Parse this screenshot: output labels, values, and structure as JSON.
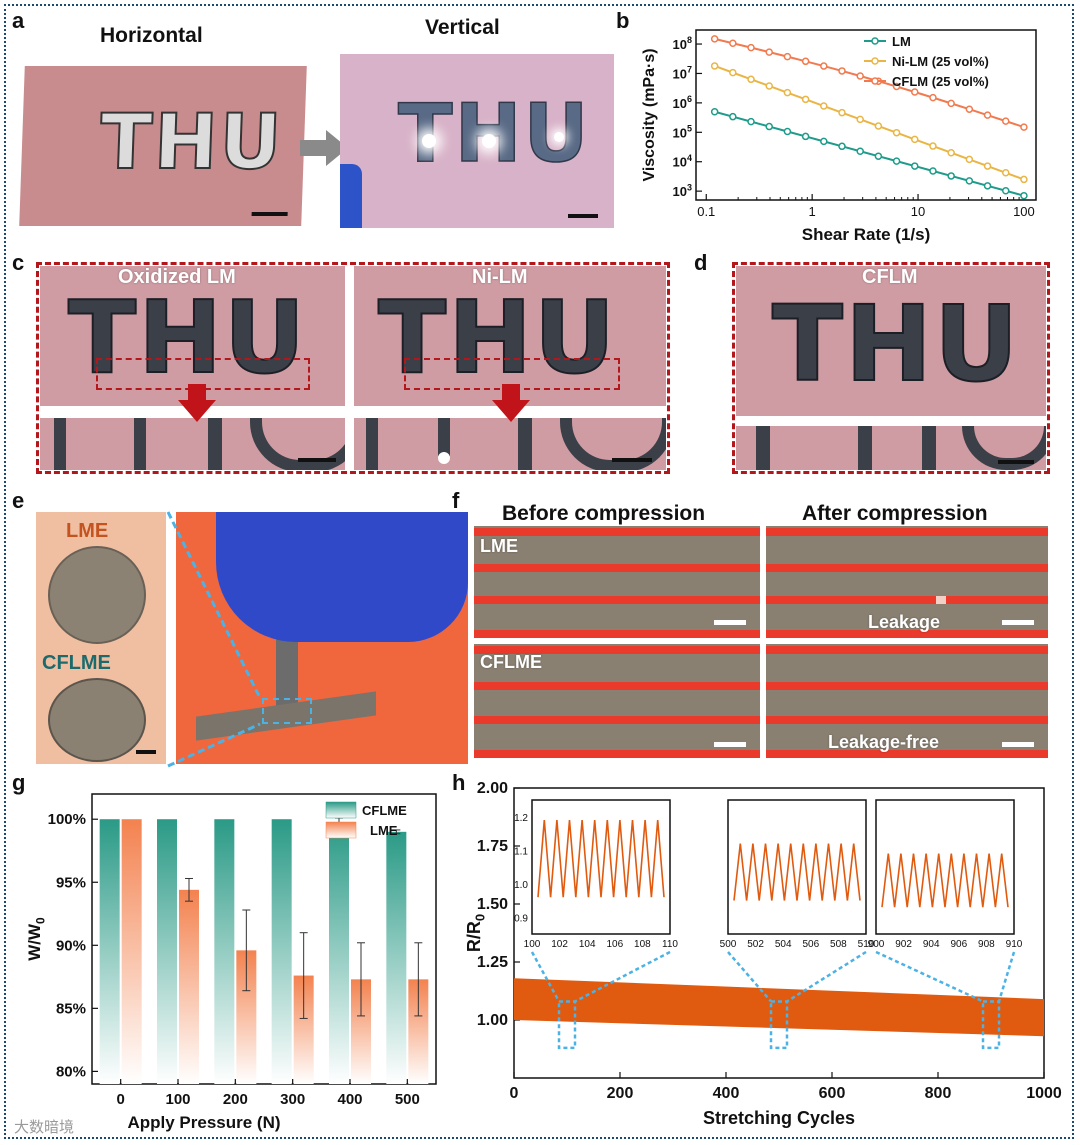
{
  "watermark": "大数暗境",
  "panels": {
    "a": {
      "label": "a",
      "title_left": "Horizontal",
      "title_right": "Vertical",
      "sample_text": "THU"
    },
    "b": {
      "label": "b"
    },
    "c": {
      "label": "c",
      "left_title": "Oxidized LM",
      "right_title": "Ni-LM",
      "sample_text": "THU"
    },
    "d": {
      "label": "d",
      "title": "CFLM",
      "sample_text": "THU"
    },
    "e": {
      "label": "e",
      "top_label": "LME",
      "bottom_label": "CFLME"
    },
    "f": {
      "label": "f",
      "col_before": "Before compression",
      "col_after": "After compression",
      "row1": "LME",
      "row2": "CFLME",
      "leak": "Leakage",
      "leakfree": "Leakage-free"
    },
    "g": {
      "label": "g"
    },
    "h": {
      "label": "h"
    }
  },
  "colors": {
    "lm": "#1e9b8a",
    "nilm": "#e9b646",
    "cflm": "#f17a4f",
    "cflme": "#2a9a86",
    "lme": "#f3824f",
    "series": "#e05a0f"
  },
  "chart_data": [
    {
      "id": "b",
      "type": "line",
      "title": "",
      "xlabel": "Shear Rate (1/s)",
      "ylabel": "Viscosity (mPa·s)",
      "xscale": "log",
      "yscale": "log",
      "xlim": [
        0.08,
        130
      ],
      "ylim": [
        500,
        300000000
      ],
      "xticks": [
        "0.1",
        "1",
        "10",
        "100"
      ],
      "yticks": [
        "10^3",
        "10^4",
        "10^5",
        "10^6",
        "10^7",
        "10^8"
      ],
      "legend_position": "top-right",
      "series": [
        {
          "name": "LM",
          "color": "#1e9b8a",
          "x_start": 0.12,
          "x_end": 100,
          "y_start": 500000,
          "y_end": 700
        },
        {
          "name": "Ni-LM (25 vol%)",
          "color": "#e9b646",
          "x_start": 0.12,
          "x_end": 100,
          "y_start": 18000000,
          "y_end": 2500
        },
        {
          "name": "CFLM (25 vol%)",
          "color": "#f17a4f",
          "x_start": 0.12,
          "x_end": 100,
          "y_start": 150000000,
          "y_end": 150000
        }
      ]
    },
    {
      "id": "g",
      "type": "bar",
      "xlabel": "Apply Pressure (N)",
      "ylabel": "W/W0",
      "categories": [
        "0",
        "100",
        "200",
        "300",
        "400",
        "500"
      ],
      "yticks": [
        "80%",
        "85%",
        "90%",
        "95%",
        "100%"
      ],
      "ylim": [
        79,
        102
      ],
      "legend_position": "top-right",
      "series": [
        {
          "name": "CFLME",
          "values": [
            100,
            100,
            100,
            100,
            99.7,
            99.0
          ],
          "errors": [
            0,
            0,
            0,
            0,
            0.4,
            0.15
          ]
        },
        {
          "name": "LME",
          "values": [
            100,
            94.4,
            89.6,
            87.6,
            87.3,
            87.3
          ],
          "errors": [
            0,
            0.9,
            3.2,
            3.4,
            2.9,
            2.9
          ]
        }
      ]
    },
    {
      "id": "h",
      "type": "line",
      "xlabel": "Stretching Cycles",
      "ylabel": "R/R0",
      "xlim": [
        0,
        1000
      ],
      "ylim": [
        0.75,
        2.0
      ],
      "xticks": [
        "0",
        "200",
        "400",
        "600",
        "800",
        "1000"
      ],
      "yticks": [
        "1.00",
        "1.25",
        "1.50",
        "1.75",
        "2.00"
      ],
      "series": [
        {
          "name": "R/R0",
          "upper_start": 1.18,
          "upper_end": 1.09,
          "lower_start": 1.0,
          "lower_end": 0.93
        }
      ],
      "insets": [
        {
          "xticks": [
            "100",
            "102",
            "104",
            "106",
            "108",
            "110"
          ],
          "yticks": [
            "0.9",
            "1.0",
            "1.1",
            "1.2"
          ],
          "ylim": [
            0.85,
            1.25
          ],
          "min": 0.96,
          "max": 1.19,
          "cycles": 10
        },
        {
          "xticks": [
            "500",
            "502",
            "504",
            "506",
            "508",
            "510"
          ],
          "ylim": [
            0.85,
            1.25
          ],
          "min": 0.95,
          "max": 1.12,
          "cycles": 10
        },
        {
          "xticks": [
            "900",
            "902",
            "904",
            "906",
            "908",
            "910"
          ],
          "ylim": [
            0.85,
            1.25
          ],
          "min": 0.93,
          "max": 1.09,
          "cycles": 10
        }
      ]
    }
  ]
}
